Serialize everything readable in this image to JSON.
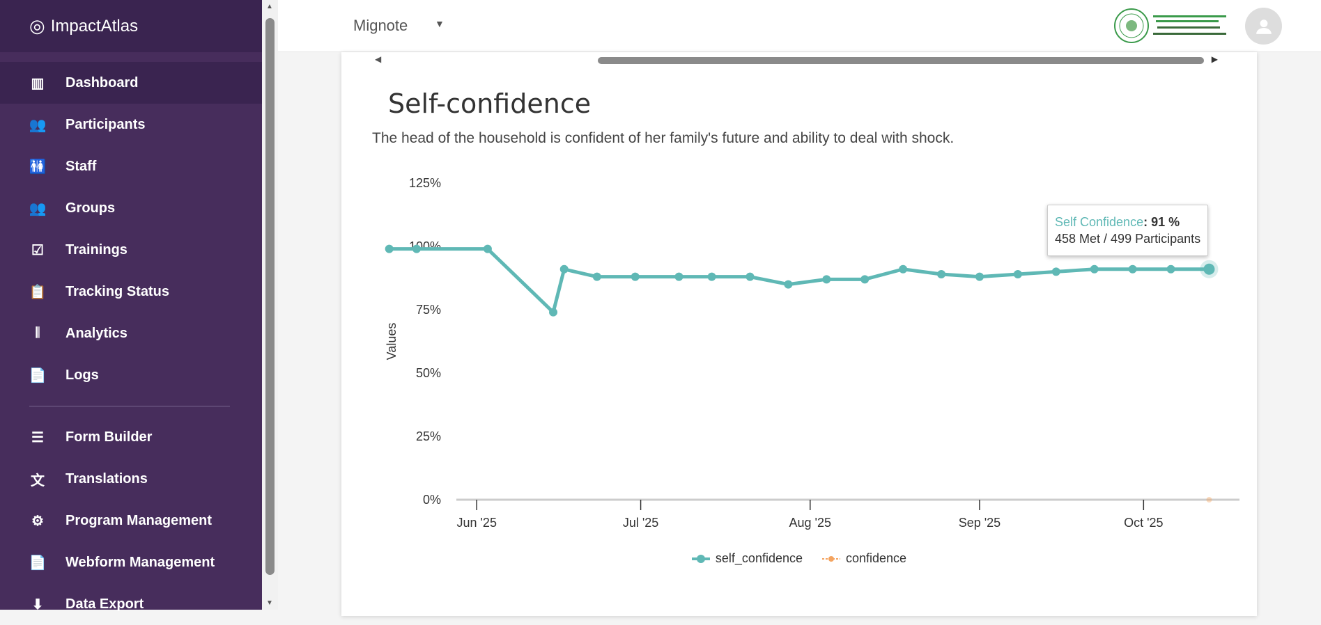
{
  "brand": "ImpactAtlas",
  "sidebar": {
    "items": [
      {
        "label": "Dashboard",
        "icon": "chart-icon",
        "glyph": "▥"
      },
      {
        "label": "Participants",
        "icon": "people-icon",
        "glyph": "👥"
      },
      {
        "label": "Staff",
        "icon": "staff-icon",
        "glyph": "🚻"
      },
      {
        "label": "Groups",
        "icon": "groups-icon",
        "glyph": "👥"
      },
      {
        "label": "Trainings",
        "icon": "clipboard-check-icon",
        "glyph": "☑"
      },
      {
        "label": "Tracking Status",
        "icon": "clipboard-icon",
        "glyph": "📋"
      },
      {
        "label": "Analytics",
        "icon": "waveform-icon",
        "glyph": "𝄃"
      },
      {
        "label": "Logs",
        "icon": "file-icon",
        "glyph": "📄"
      }
    ],
    "items2": [
      {
        "label": "Form Builder",
        "icon": "list-icon",
        "glyph": "☰"
      },
      {
        "label": "Translations",
        "icon": "translate-icon",
        "glyph": "文"
      },
      {
        "label": "Program Management",
        "icon": "gear-icon",
        "glyph": "⚙"
      },
      {
        "label": "Webform Management",
        "icon": "document-icon",
        "glyph": "📄"
      },
      {
        "label": "Data Export",
        "icon": "download-icon",
        "glyph": "⬇"
      }
    ]
  },
  "header": {
    "organization": "Mignote",
    "logo_text": "Ethiopian Orthodox Tewahedo Church Development and Inter-Church Aid Commission"
  },
  "card": {
    "title": "Self-confidence",
    "description": "The head of the household is confident of her family's future and ability to deal with shock."
  },
  "tooltip": {
    "series": "Self Confidence",
    "value": ": 91 %",
    "detail": "458 Met / 499 Participants"
  },
  "chart_data": {
    "type": "line",
    "ylabel": "Values",
    "ylim": [
      0,
      125
    ],
    "yticks": [
      "0%",
      "25%",
      "50%",
      "75%",
      "100%",
      "125%"
    ],
    "xticks": [
      {
        "label": "Jun '25",
        "date": "2025-06-01"
      },
      {
        "label": "Jul '25",
        "date": "2025-07-01"
      },
      {
        "label": "Aug '25",
        "date": "2025-08-01"
      },
      {
        "label": "Sep '25",
        "date": "2025-09-01"
      },
      {
        "label": "Oct '25",
        "date": "2025-10-01"
      }
    ],
    "xrange": [
      "2025-05-14",
      "2025-10-16"
    ],
    "series": [
      {
        "name": "self_confidence",
        "color": "#5fb8b5",
        "x": [
          "2025-05-16",
          "2025-05-21",
          "2025-06-03",
          "2025-06-15",
          "2025-06-17",
          "2025-06-23",
          "2025-06-30",
          "2025-07-08",
          "2025-07-14",
          "2025-07-21",
          "2025-07-28",
          "2025-08-04",
          "2025-08-11",
          "2025-08-18",
          "2025-08-25",
          "2025-09-01",
          "2025-09-08",
          "2025-09-15",
          "2025-09-22",
          "2025-09-29",
          "2025-10-06",
          "2025-10-13"
        ],
        "values": [
          99,
          99,
          99,
          74,
          91,
          88,
          88,
          88,
          88,
          88,
          85,
          87,
          87,
          91,
          89,
          88,
          89,
          90,
          91,
          91,
          91,
          91
        ]
      },
      {
        "name": "confidence",
        "color": "#f4a460",
        "x": [
          "2025-10-13"
        ],
        "values": [
          0
        ]
      }
    ]
  }
}
